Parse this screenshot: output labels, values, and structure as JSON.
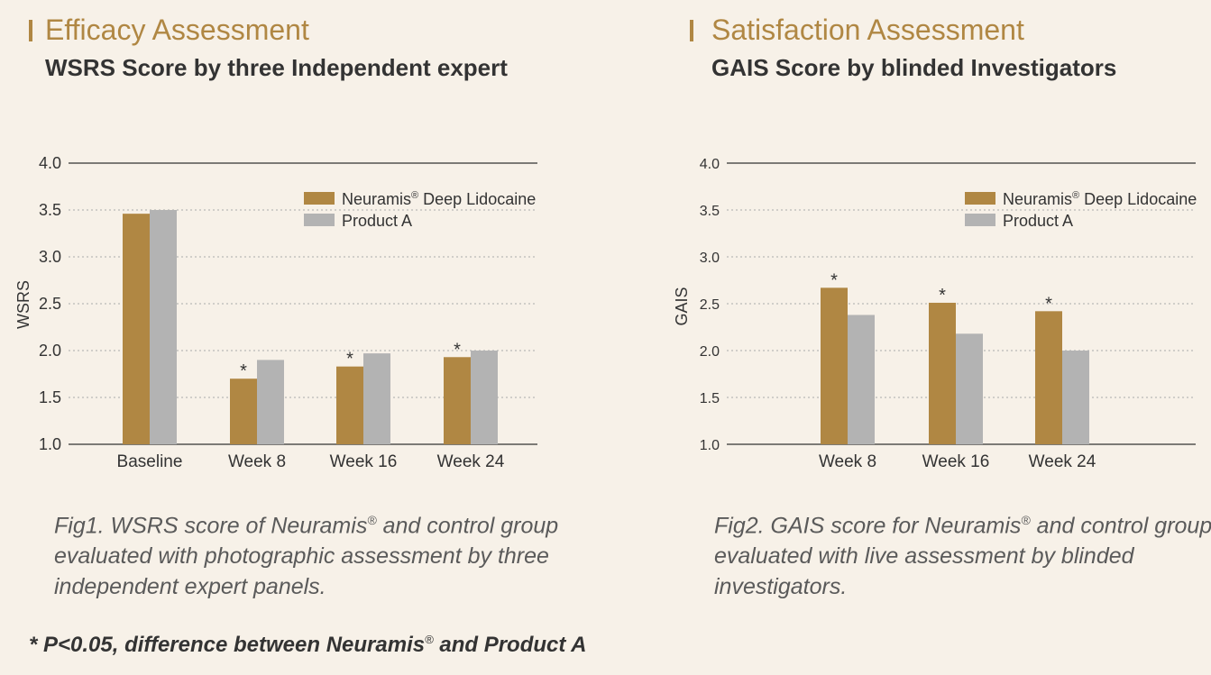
{
  "left": {
    "title": "Efficacy Assessment",
    "subtitle": "WSRS Score by three Independent expert",
    "caption_before": "Fig1. WSRS score of Neuramis",
    "caption_after": " and control group evaluated with photographic assessment by three independent expert panels."
  },
  "right": {
    "title": "Satisfaction Assessment",
    "subtitle": "GAIS Score by blinded Investigators",
    "caption_before": "Fig2. GAIS score for Neuramis",
    "caption_after": " and control group evaluated with live assessment by blinded investigators."
  },
  "footnote": {
    "before": "* P<0.05, difference between Neuramis",
    "after": " and Product A"
  },
  "registered_mark": "®",
  "colors": {
    "neuramis": "#b08743",
    "product_a": "#b3b3b3",
    "title": "#b08743",
    "background": "#f7f1e8"
  },
  "chart_data": [
    {
      "type": "bar",
      "ylabel": "WSRS",
      "ylim": [
        1.0,
        4.0
      ],
      "yticks": [
        "1.0",
        "1.5",
        "2.0",
        "2.5",
        "3.0",
        "3.5",
        "4.0"
      ],
      "categories": [
        "Baseline",
        "Week 8",
        "Week 16",
        "Week 24"
      ],
      "series": [
        {
          "name": "Neuramis® Deep Lidocaine",
          "values": [
            3.46,
            1.7,
            1.83,
            1.93
          ]
        },
        {
          "name": "Product A",
          "values": [
            3.5,
            1.9,
            1.97,
            2.0
          ]
        }
      ],
      "significance": [
        "",
        "*",
        "*",
        "*"
      ],
      "legend": "top-right",
      "grid": "dotted-horizontal"
    },
    {
      "type": "bar",
      "ylabel": "GAIS",
      "ylim": [
        1.0,
        4.0
      ],
      "yticks": [
        "1.0",
        "1.5",
        "2.0",
        "2.5",
        "3.0",
        "3.5",
        "4.0"
      ],
      "categories": [
        "Week 8",
        "Week 16",
        "Week 24"
      ],
      "series": [
        {
          "name": "Neuramis® Deep Lidocaine",
          "values": [
            2.67,
            2.51,
            2.42
          ]
        },
        {
          "name": "Product A",
          "values": [
            2.38,
            2.18,
            2.0
          ]
        }
      ],
      "significance": [
        "*",
        "*",
        "*"
      ],
      "legend": "top-right",
      "grid": "dotted-horizontal"
    }
  ]
}
